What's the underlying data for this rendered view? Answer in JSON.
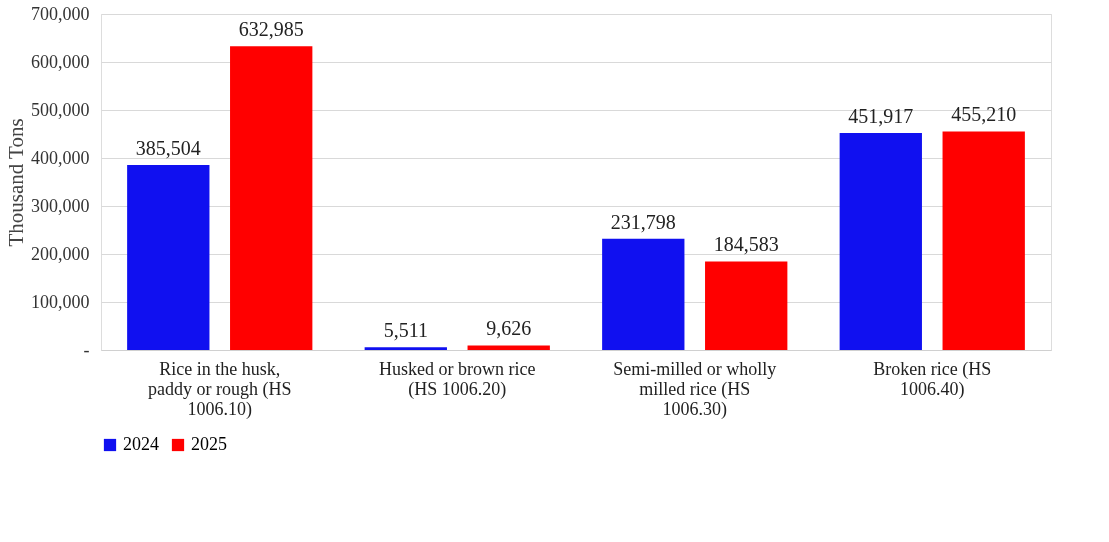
{
  "chart_data": {
    "type": "bar",
    "ylabel": "Thousand Tons",
    "categories": [
      "Rice in the husk, paddy or rough (HS 1006.10)",
      "Husked or brown rice (HS 1006.20)",
      "Semi-milled or wholly milled rice (HS 1006.30)",
      "Broken rice (HS 1006.40)"
    ],
    "series": [
      {
        "name": "2024",
        "color": "#1010f0",
        "values": [
          385504,
          5511,
          231798,
          451917
        ],
        "value_labels": [
          "385,504",
          "5,511",
          "231,798",
          "451,917"
        ]
      },
      {
        "name": "2025",
        "color": "#ff0000",
        "values": [
          632985,
          9626,
          184583,
          455210
        ],
        "value_labels": [
          "632,985",
          "9,626",
          "184,583",
          "455,210"
        ]
      }
    ],
    "ylim": [
      0,
      700000
    ],
    "yticks": [
      {
        "value": 0,
        "label": "-"
      },
      {
        "value": 100000,
        "label": "100,000"
      },
      {
        "value": 200000,
        "label": "200,000"
      },
      {
        "value": 300000,
        "label": "300,000"
      },
      {
        "value": 400000,
        "label": "400,000"
      },
      {
        "value": 500000,
        "label": "500,000"
      },
      {
        "value": 600000,
        "label": "600,000"
      },
      {
        "value": 700000,
        "label": "700,000"
      }
    ],
    "grid": "y",
    "legend": "bottom"
  }
}
